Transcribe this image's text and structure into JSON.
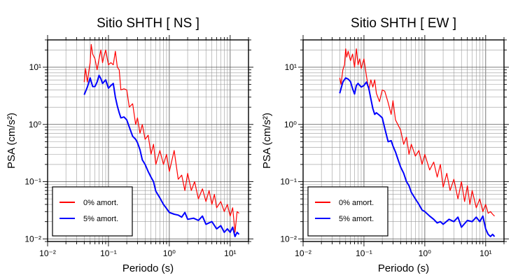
{
  "chart_data": [
    {
      "type": "line",
      "title": "Sitio SHTH [ NS ]",
      "xlabel": "Periodo (s)",
      "ylabel": "PSA (cm/s²)",
      "xscale": "log",
      "yscale": "log",
      "xlim": [
        0.01,
        20
      ],
      "ylim": [
        0.009,
        30
      ],
      "grid": true,
      "legend_position": "bottom-left",
      "xtick_labels": [
        "10⁻²",
        "10⁻¹",
        "10⁰",
        "10¹"
      ],
      "ytick_labels": [
        "10⁻²",
        "10⁻¹",
        "10⁰",
        "10¹"
      ],
      "series": [
        {
          "name": "0% amort.",
          "color": "#ff0000",
          "x": [
            0.04,
            0.042,
            0.045,
            0.048,
            0.05,
            0.052,
            0.055,
            0.06,
            0.065,
            0.07,
            0.075,
            0.08,
            0.085,
            0.09,
            0.1,
            0.11,
            0.12,
            0.13,
            0.14,
            0.15,
            0.16,
            0.18,
            0.2,
            0.22,
            0.25,
            0.28,
            0.3,
            0.33,
            0.36,
            0.4,
            0.45,
            0.5,
            0.55,
            0.6,
            0.7,
            0.8,
            0.9,
            1.0,
            1.2,
            1.4,
            1.6,
            1.8,
            2.0,
            2.3,
            2.6,
            3.0,
            3.5,
            4.0,
            4.5,
            5.0,
            5.5,
            6.0,
            7.0,
            8.0,
            9.0,
            10.0,
            11.0,
            12.0,
            13.0,
            14.0
          ],
          "y": [
            5.5,
            9.5,
            5.5,
            9.0,
            12.0,
            25.0,
            17.0,
            14.0,
            9.0,
            14.0,
            20.0,
            12.0,
            16.0,
            20.0,
            11.0,
            12.0,
            11.0,
            19.0,
            10.0,
            9.0,
            4.0,
            4.2,
            4.0,
            2.0,
            2.3,
            1.0,
            1.3,
            0.7,
            1.0,
            0.55,
            0.65,
            0.3,
            0.45,
            0.2,
            0.35,
            0.2,
            0.3,
            0.15,
            0.35,
            0.11,
            0.13,
            0.07,
            0.14,
            0.07,
            0.1,
            0.05,
            0.075,
            0.045,
            0.07,
            0.04,
            0.06,
            0.035,
            0.045,
            0.03,
            0.04,
            0.025,
            0.035,
            0.013,
            0.03,
            0.028
          ]
        },
        {
          "name": "5% amort.",
          "color": "#0000ff",
          "x": [
            0.04,
            0.045,
            0.05,
            0.055,
            0.06,
            0.065,
            0.07,
            0.075,
            0.08,
            0.09,
            0.1,
            0.11,
            0.12,
            0.13,
            0.14,
            0.15,
            0.16,
            0.18,
            0.2,
            0.22,
            0.25,
            0.28,
            0.3,
            0.33,
            0.36,
            0.4,
            0.45,
            0.5,
            0.55,
            0.6,
            0.7,
            0.8,
            0.9,
            1.0,
            1.2,
            1.4,
            1.6,
            1.8,
            2.0,
            2.5,
            3.0,
            3.5,
            4.0,
            5.0,
            6.0,
            7.0,
            8.0,
            9.0,
            10.0,
            11.0,
            12.0,
            13.0,
            14.0
          ],
          "y": [
            3.3,
            4.5,
            6.5,
            4.6,
            4.6,
            5.5,
            7.2,
            6.3,
            5.2,
            6.0,
            4.3,
            4.8,
            5.2,
            3.0,
            2.1,
            1.6,
            1.3,
            1.35,
            1.2,
            0.9,
            0.62,
            0.55,
            0.48,
            0.36,
            0.24,
            0.2,
            0.15,
            0.12,
            0.1,
            0.068,
            0.052,
            0.04,
            0.034,
            0.029,
            0.027,
            0.026,
            0.024,
            0.029,
            0.022,
            0.023,
            0.021,
            0.025,
            0.018,
            0.02,
            0.015,
            0.017,
            0.013,
            0.015,
            0.013,
            0.016,
            0.011,
            0.013,
            0.012
          ]
        }
      ]
    },
    {
      "type": "line",
      "title": "Sitio SHTH [ EW ]",
      "xlabel": "Periodo (s)",
      "ylabel": "PSA (cm/s²)",
      "xscale": "log",
      "yscale": "log",
      "xlim": [
        0.01,
        20
      ],
      "ylim": [
        0.009,
        30
      ],
      "grid": true,
      "legend_position": "bottom-left",
      "xtick_labels": [
        "10⁻²",
        "10⁻¹",
        "10⁰",
        "10¹"
      ],
      "ytick_labels": [
        "10⁻²",
        "10⁻¹",
        "10⁰",
        "10¹"
      ],
      "series": [
        {
          "name": "0% amort.",
          "color": "#ff0000",
          "x": [
            0.04,
            0.042,
            0.045,
            0.048,
            0.05,
            0.052,
            0.055,
            0.06,
            0.065,
            0.07,
            0.075,
            0.08,
            0.085,
            0.09,
            0.1,
            0.11,
            0.12,
            0.13,
            0.14,
            0.15,
            0.16,
            0.18,
            0.2,
            0.22,
            0.25,
            0.28,
            0.3,
            0.33,
            0.36,
            0.4,
            0.45,
            0.5,
            0.55,
            0.6,
            0.7,
            0.8,
            0.9,
            1.0,
            1.2,
            1.4,
            1.6,
            1.8,
            2.0,
            2.3,
            2.6,
            3.0,
            3.5,
            4.0,
            4.5,
            5.0,
            5.5,
            6.0,
            7.0,
            8.0,
            9.0,
            10.0,
            11.0,
            12.0,
            13.0,
            14.0
          ],
          "y": [
            6.5,
            5.0,
            9.0,
            11.0,
            21.0,
            15.0,
            19.0,
            13.0,
            17.0,
            10.0,
            21.0,
            11.0,
            14.0,
            9.5,
            14.0,
            7.0,
            4.0,
            6.0,
            4.5,
            6.0,
            3.5,
            2.5,
            4.0,
            3.8,
            2.4,
            1.5,
            2.6,
            1.2,
            1.0,
            0.8,
            0.45,
            0.6,
            0.3,
            0.45,
            0.28,
            0.35,
            0.2,
            0.3,
            0.16,
            0.22,
            0.12,
            0.2,
            0.08,
            0.14,
            0.07,
            0.11,
            0.05,
            0.1,
            0.045,
            0.085,
            0.04,
            0.07,
            0.035,
            0.05,
            0.03,
            0.04,
            0.028,
            0.03,
            0.027,
            0.025
          ]
        },
        {
          "name": "5% amort.",
          "color": "#0000ff",
          "x": [
            0.04,
            0.045,
            0.05,
            0.055,
            0.06,
            0.065,
            0.07,
            0.075,
            0.08,
            0.09,
            0.1,
            0.11,
            0.12,
            0.13,
            0.14,
            0.15,
            0.16,
            0.18,
            0.2,
            0.22,
            0.25,
            0.28,
            0.3,
            0.33,
            0.36,
            0.4,
            0.45,
            0.5,
            0.55,
            0.6,
            0.7,
            0.8,
            0.9,
            1.0,
            1.2,
            1.4,
            1.6,
            1.8,
            2.0,
            2.5,
            3.0,
            3.5,
            4.0,
            5.0,
            6.0,
            7.0,
            8.0,
            9.0,
            10.0,
            11.0,
            12.0,
            13.0,
            14.0
          ],
          "y": [
            3.5,
            5.5,
            6.5,
            6.2,
            5.6,
            4.2,
            3.4,
            4.8,
            5.2,
            4.5,
            4.8,
            5.5,
            4.3,
            2.8,
            1.9,
            1.5,
            1.6,
            1.45,
            1.3,
            0.85,
            0.5,
            0.52,
            0.42,
            0.33,
            0.25,
            0.18,
            0.14,
            0.1,
            0.085,
            0.065,
            0.05,
            0.04,
            0.032,
            0.03,
            0.025,
            0.022,
            0.019,
            0.02,
            0.018,
            0.022,
            0.02,
            0.024,
            0.016,
            0.021,
            0.02,
            0.024,
            0.02,
            0.025,
            0.015,
            0.012,
            0.011,
            0.012,
            0.011
          ]
        }
      ]
    }
  ]
}
